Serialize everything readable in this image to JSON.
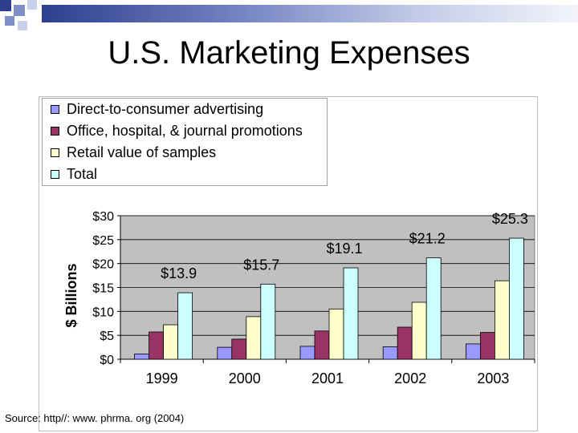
{
  "slide": {
    "title": "U.S. Marketing Expenses",
    "source": "Source: http//: www. phrma. org (2004)"
  },
  "colors": {
    "series": [
      "#9999ff",
      "#993366",
      "#ffffcc",
      "#ccffff"
    ],
    "plot_background": "#c0c0c0",
    "decoration": [
      "#2e3f8f",
      "#7f8fc8",
      "#c9d0ea"
    ]
  },
  "chart_data": {
    "type": "bar",
    "title": "",
    "xlabel": "",
    "ylabel": "$ Billions",
    "ylim": [
      0,
      30
    ],
    "y_ticks": [
      0,
      5,
      10,
      15,
      20,
      25,
      30
    ],
    "y_tick_labels": [
      "$0",
      "$5",
      "$10",
      "$15",
      "$20",
      "$25",
      "$30"
    ],
    "categories": [
      "1999",
      "2000",
      "2001",
      "2002",
      "2003"
    ],
    "series": [
      {
        "name": "Direct-to-consumer advertising",
        "values": [
          1.1,
          2.5,
          2.7,
          2.6,
          3.2
        ]
      },
      {
        "name": "Office, hospital, & journal promotions",
        "values": [
          5.7,
          4.2,
          5.9,
          6.7,
          5.6
        ]
      },
      {
        "name": "Retail value of samples",
        "values": [
          7.2,
          8.9,
          10.5,
          11.9,
          16.4
        ]
      },
      {
        "name": "Total",
        "values": [
          13.9,
          15.7,
          19.1,
          21.2,
          25.3
        ]
      }
    ],
    "total_labels": [
      "$13.9",
      "$15.7",
      "$19.1",
      "$21.2",
      "$25.3"
    ],
    "legend_position": "top-left",
    "grid": true
  }
}
